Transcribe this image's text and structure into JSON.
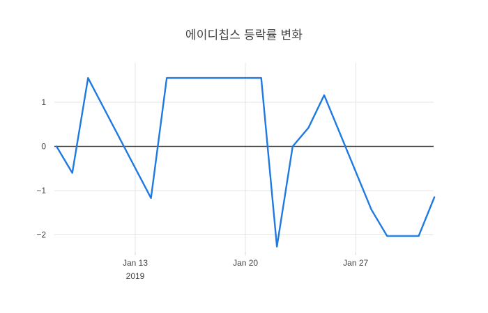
{
  "title": "에이디칩스 등락률 변화",
  "colors": {
    "line": "#1e7ae0",
    "grid": "#e6e6e6",
    "zeroline": "#444444",
    "tick_mark": "#d9d9d9",
    "tick_label": "#444444",
    "title_text": "#444444",
    "background": "#ffffff"
  },
  "chart_data": {
    "type": "line",
    "title": "에이디칩스 등락률 변화",
    "xlabel": "",
    "ylabel": "",
    "legend": "none",
    "grid": true,
    "ylim": [
      -2.4,
      1.9
    ],
    "x": [
      "2019-01-08",
      "2019-01-09",
      "2019-01-10",
      "2019-01-14",
      "2019-01-15",
      "2019-01-21",
      "2019-01-22",
      "2019-01-23",
      "2019-01-24",
      "2019-01-25",
      "2019-01-28",
      "2019-01-29",
      "2019-01-31",
      "2019-02-01"
    ],
    "y": [
      0,
      -0.6,
      1.55,
      -1.17,
      1.55,
      1.55,
      -2.27,
      0,
      0.42,
      1.16,
      -1.43,
      -2.03,
      -2.03,
      -1.15
    ],
    "series_name": "등락률",
    "x_ticks": [
      {
        "date": "2019-01-13",
        "label": "Jan 13",
        "sublabel": "2019"
      },
      {
        "date": "2019-01-20",
        "label": "Jan 20",
        "sublabel": ""
      },
      {
        "date": "2019-01-27",
        "label": "Jan 27",
        "sublabel": ""
      }
    ],
    "y_ticks": [
      1,
      0,
      -1,
      -2
    ]
  }
}
